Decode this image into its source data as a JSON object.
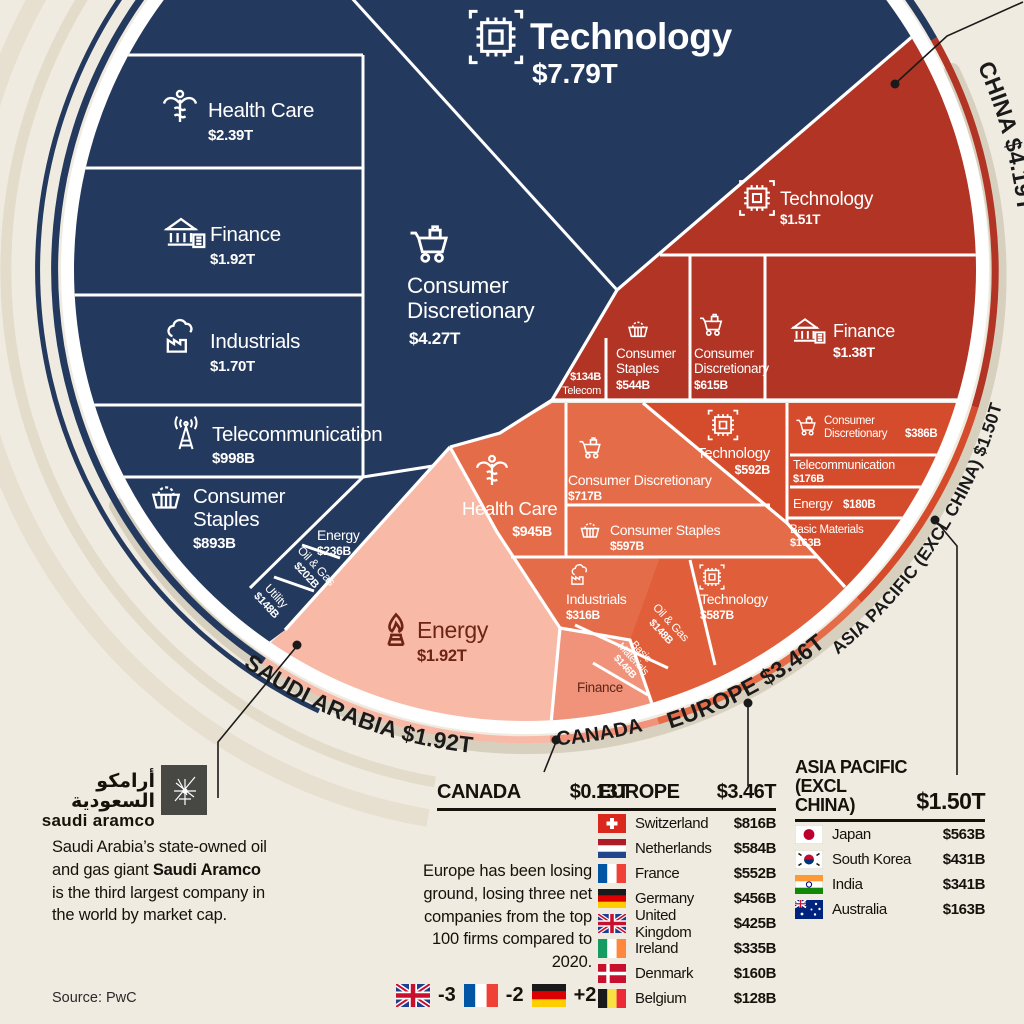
{
  "meta": {
    "source": "Source: PwC"
  },
  "colors": {
    "background": "#f0ebe1",
    "us_navy": "#24395e",
    "china_red": "#b13425",
    "asia_pacific": "#d54c2c",
    "europe": "#e56c49",
    "europe_deep": "#e05f3a",
    "canada": "#f0937a",
    "saudi_pink": "#f9b9a7",
    "dark_maroon": "#6e2414",
    "ink": "#1a1a1a"
  },
  "chart_data": {
    "type": "pie",
    "title": "",
    "units": "USD billions (values as shown)",
    "legend": false,
    "regions": [
      {
        "label": "",
        "color": "#24395e",
        "total": null,
        "sectors": [
          [
            "Technology",
            7790
          ],
          [
            "Consumer Discretionary",
            4270
          ],
          [
            "Health Care",
            2390
          ],
          [
            "Finance",
            1920
          ],
          [
            "Industrials",
            1700
          ],
          [
            "Telecommunication",
            998
          ],
          [
            "Consumer Staples",
            893
          ],
          [
            "Energy",
            236
          ],
          [
            "Oil & Gas",
            202
          ],
          [
            "Utility",
            148
          ]
        ]
      },
      {
        "label": "CHINA",
        "color": "#b13425",
        "total": 4190,
        "sectors": [
          [
            "Technology",
            1510
          ],
          [
            "Finance",
            1380
          ],
          [
            "Consumer Discretionary",
            615
          ],
          [
            "Consumer Staples",
            544
          ],
          [
            "Telecom",
            134
          ]
        ]
      },
      {
        "label": "ASIA PACIFIC (EXCL CHINA)",
        "color": "#d54c2c",
        "total": 1500,
        "sectors": [
          [
            "Technology",
            592
          ],
          [
            "Consumer Discretionary",
            386
          ],
          [
            "Energy",
            180
          ],
          [
            "Telecommunication",
            176
          ],
          [
            "Basic Materials",
            163
          ]
        ]
      },
      {
        "label": "EUROPE",
        "color": "#e56c49",
        "total": 3460,
        "sectors": [
          [
            "Health Care",
            945
          ],
          [
            "Consumer Discretionary",
            717
          ],
          [
            "Consumer Staples",
            597
          ],
          [
            "Technology",
            587
          ],
          [
            "Industrials",
            316
          ],
          [
            "Oil & Gas",
            148
          ],
          [
            "Basic Materials",
            146
          ]
        ]
      },
      {
        "label": "CANADA",
        "color": "#f0937a",
        "total": 130,
        "sectors": [
          [
            "Finance",
            null
          ]
        ]
      },
      {
        "label": "SAUDI ARABIA",
        "color": "#f9b9a7",
        "total": 1920,
        "sectors": [
          [
            "Energy",
            1920
          ]
        ]
      }
    ]
  },
  "wedges": {
    "us": {
      "technology": {
        "name": "Technology",
        "value": "$7.79T"
      },
      "consumer_discretionary": {
        "line1": "Consumer",
        "line2": "Discretionary",
        "value": "$4.27T"
      },
      "health_care": {
        "name": "Health Care",
        "value": "$2.39T"
      },
      "finance": {
        "name": "Finance",
        "value": "$1.92T"
      },
      "industrials": {
        "name": "Industrials",
        "value": "$1.70T"
      },
      "telecommunication": {
        "name": "Telecommunication",
        "value": "$998B"
      },
      "consumer_staples": {
        "line1": "Consumer",
        "line2": "Staples",
        "value": "$893B"
      },
      "energy": {
        "name": "Energy",
        "value": "$236B"
      },
      "oil_gas": {
        "line1": "Oil & Gas",
        "value": "$202B"
      },
      "utility": {
        "line1": "Utility",
        "value": "$148B"
      }
    },
    "china": {
      "arc": "CHINA $4.19T",
      "technology": {
        "name": "Technology",
        "value": "$1.51T"
      },
      "telecom": {
        "value": "$134B",
        "name": "Telecom"
      },
      "consumer_staples": {
        "line1": "Consumer",
        "line2": "Staples",
        "value": "$544B"
      },
      "consumer_discretionary": {
        "line1": "Consumer",
        "line2": "Discretionary",
        "value": "$615B"
      },
      "finance": {
        "name": "Finance",
        "value": "$1.38T"
      }
    },
    "asia_pacific": {
      "arc": "ASIA PACIFIC (EXCL CHINA) $1.50T",
      "technology": {
        "name": "Technology",
        "value": "$592B"
      },
      "consumer_discretionary": {
        "line1": "Consumer",
        "line2": "Discretionary",
        "value": "$386B"
      },
      "telecommunication": {
        "name": "Telecommunication",
        "value": "$176B"
      },
      "energy": {
        "name": "Energy",
        "value": "$180B"
      },
      "basic_materials": {
        "line1": "Basic Materials",
        "value": "$163B"
      }
    },
    "europe": {
      "arc": "EUROPE $3.46T",
      "health_care": {
        "name": "Health Care",
        "value": "$945B"
      },
      "consumer_discretionary": {
        "name": "Consumer Discretionary",
        "value": "$717B"
      },
      "consumer_staples": {
        "name": "Consumer Staples",
        "value": "$597B"
      },
      "industrials": {
        "name": "Industrials",
        "value": "$316B"
      },
      "technology": {
        "name": "Technology",
        "value": "$587B"
      },
      "oil_gas": {
        "line1": "Oil & Gas",
        "value": "$148B"
      },
      "basic_materials": {
        "line1": "Basic",
        "line2": "Materials",
        "value": "$146B"
      }
    },
    "canada": {
      "arc": "CANADA",
      "finance": {
        "name": "Finance"
      }
    },
    "saudi": {
      "arc": "SAUDI ARABIA $1.92T",
      "energy": {
        "name": "Energy",
        "value": "$1.92T"
      }
    }
  },
  "aramco": {
    "arabic": "أرامكو السعودية",
    "latin": "saudi aramco",
    "note_1": "Saudi Arabia’s state-owned oil and gas giant ",
    "note_bold": "Saudi Aramco",
    "note_2": " is the third largest company in the world by market cap."
  },
  "tables": {
    "canada": {
      "title": "CANADA",
      "total": "$0.13T"
    },
    "europe": {
      "title": "EUROPE",
      "total": "$3.46T",
      "rows": [
        {
          "flag": "switzerland",
          "country": "Switzerland",
          "value": "$816B"
        },
        {
          "flag": "netherlands",
          "country": "Netherlands",
          "value": "$584B"
        },
        {
          "flag": "france",
          "country": "France",
          "value": "$552B"
        },
        {
          "flag": "germany",
          "country": "Germany",
          "value": "$456B"
        },
        {
          "flag": "united-kingdom",
          "country": "United Kingdom",
          "value": "$425B"
        },
        {
          "flag": "ireland",
          "country": "Ireland",
          "value": "$335B"
        },
        {
          "flag": "denmark",
          "country": "Denmark",
          "value": "$160B"
        },
        {
          "flag": "belgium",
          "country": "Belgium",
          "value": "$128B"
        }
      ]
    },
    "asia_pacific": {
      "title_line1": "ASIA PACIFIC (EXCL",
      "title_line2": "CHINA)",
      "total": "$1.50T",
      "rows": [
        {
          "flag": "japan",
          "country": "Japan",
          "value": "$563B"
        },
        {
          "flag": "south-korea",
          "country": "South Korea",
          "value": "$431B"
        },
        {
          "flag": "india",
          "country": "India",
          "value": "$341B"
        },
        {
          "flag": "australia",
          "country": "Australia",
          "value": "$163B"
        }
      ]
    }
  },
  "europe_note": "Europe has been losing ground, losing three net companies from the top 100 firms compared to 2020.",
  "flag_deltas": [
    {
      "flag": "united-kingdom",
      "delta": "-3"
    },
    {
      "flag": "france",
      "delta": "-2"
    },
    {
      "flag": "germany",
      "delta": "+2"
    }
  ]
}
